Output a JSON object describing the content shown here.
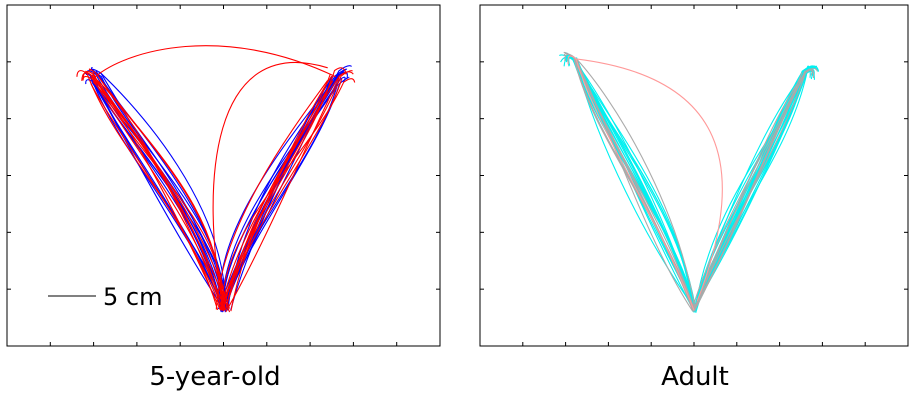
{
  "figure": {
    "panels": [
      {
        "label": "5-year-old"
      },
      {
        "label": "Adult"
      }
    ],
    "scale_bar_label": "5 cm"
  },
  "chart_data": [
    {
      "type": "line",
      "panel": "5-year-old",
      "title": "",
      "xlabel": "",
      "ylabel": "",
      "tick_labels_shown": false,
      "grid": false,
      "scale_bar": {
        "length_cm": 5,
        "label": "5 cm"
      },
      "units": "cm",
      "xlim": [
        -13.5,
        13.5
      ],
      "ylim": [
        -2,
        17
      ],
      "start_point": [
        0,
        0
      ],
      "targets": [
        {
          "name": "left",
          "x": -8.0,
          "y": 13.0
        },
        {
          "name": "right",
          "x": 7.0,
          "y": 13.0
        }
      ],
      "colors": {
        "blue": "#0000ff",
        "red": "#ff0000"
      },
      "series": [
        {
          "color": "blue",
          "trajectory_count": 28
        },
        {
          "color": "red",
          "trajectory_count": 22
        }
      ]
    },
    {
      "type": "line",
      "panel": "Adult",
      "title": "",
      "xlabel": "",
      "ylabel": "",
      "tick_labels_shown": false,
      "grid": false,
      "units": "cm",
      "xlim": [
        -13.5,
        13.5
      ],
      "ylim": [
        -2,
        17
      ],
      "start_point": [
        0,
        0
      ],
      "targets": [
        {
          "name": "left",
          "x": -7.5,
          "y": 14.0
        },
        {
          "name": "right",
          "x": 7.0,
          "y": 13.3
        }
      ],
      "colors": {
        "cyan": "#00f0f0",
        "gray": "#aaaaaa",
        "pink": "#ff9999"
      },
      "series": [
        {
          "color": "cyan",
          "trajectory_count": 40
        },
        {
          "color": "gray",
          "trajectory_count": 14
        },
        {
          "color": "pink",
          "trajectory_count": 1
        }
      ]
    }
  ]
}
